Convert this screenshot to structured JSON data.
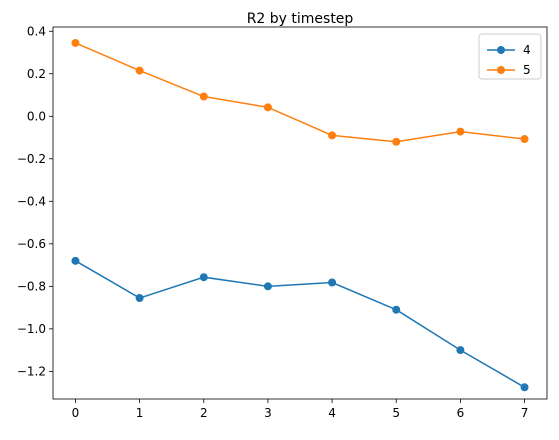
{
  "chart_data": {
    "type": "line",
    "title": "R2 by timestep",
    "xlabel": "",
    "ylabel": "",
    "x": [
      0,
      1,
      2,
      3,
      4,
      5,
      6,
      7
    ],
    "xlim": [
      -0.35,
      7.35
    ],
    "ylim": [
      -1.33,
      0.42
    ],
    "xticks": [
      0,
      1,
      2,
      3,
      4,
      5,
      6,
      7
    ],
    "yticks": [
      0.4,
      0.2,
      0.0,
      -0.2,
      -0.4,
      -0.6,
      -0.8,
      -1.0,
      -1.2
    ],
    "ytick_labels": [
      "0.4",
      "0.2",
      "0.0",
      "−0.2",
      "−0.4",
      "−0.6",
      "−0.8",
      "−1.0",
      "−1.2"
    ],
    "grid": false,
    "legend_position": "top-right",
    "series": [
      {
        "name": "4",
        "color": "#1f77b4",
        "values": [
          -0.68,
          -0.855,
          -0.757,
          -0.8,
          -0.782,
          -0.91,
          -1.1,
          -1.275
        ]
      },
      {
        "name": "5",
        "color": "#ff7f0e",
        "values": [
          0.345,
          0.215,
          0.093,
          0.042,
          -0.09,
          -0.12,
          -0.072,
          -0.107
        ]
      }
    ]
  }
}
